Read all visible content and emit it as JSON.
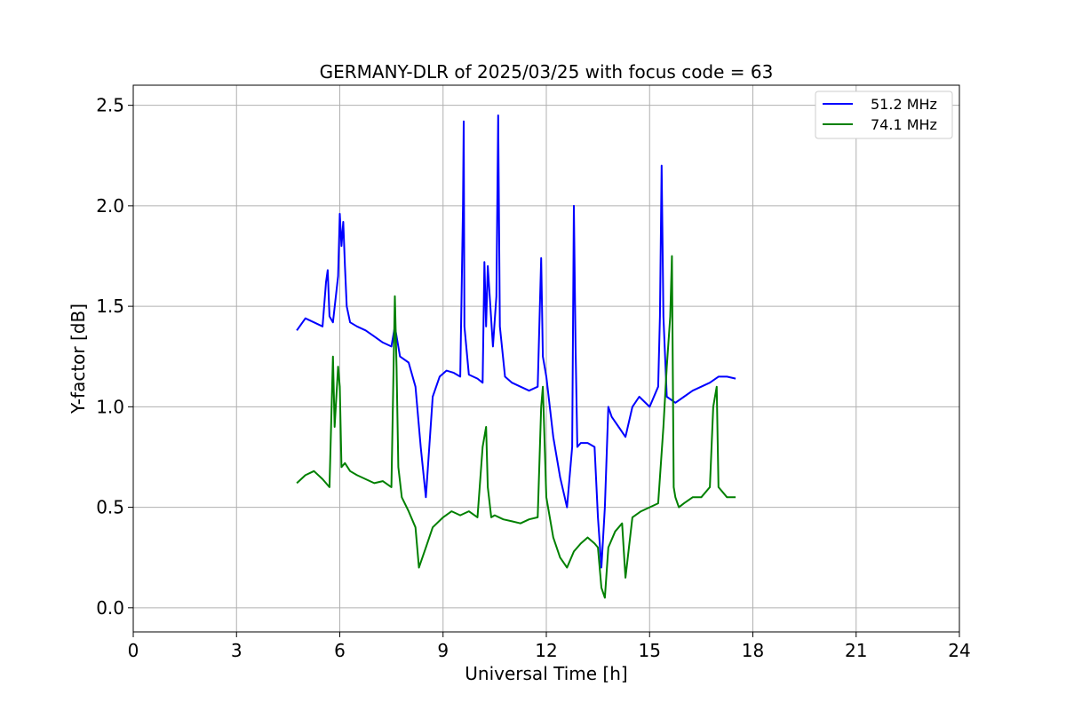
{
  "chart_data": {
    "type": "line",
    "title": "GERMANY-DLR of 2025/03/25 with focus code = 63",
    "xlabel": "Universal Time [h]",
    "ylabel": "Y-factor [dB]",
    "xlim": [
      0,
      24
    ],
    "ylim": [
      -0.12,
      2.6
    ],
    "x_ticks": [
      0,
      3,
      6,
      9,
      12,
      15,
      18,
      21,
      24
    ],
    "y_ticks": [
      0.0,
      0.5,
      1.0,
      1.5,
      2.0,
      2.5
    ],
    "x_tick_labels": [
      "0",
      "3",
      "6",
      "9",
      "12",
      "15",
      "18",
      "21",
      "24"
    ],
    "y_tick_labels": [
      "0.0",
      "0.5",
      "1.0",
      "1.5",
      "2.0",
      "2.5"
    ],
    "grid": true,
    "legend_position": "top-right",
    "series": [
      {
        "name": "51.2 MHz",
        "color": "#0000ff",
        "x": [
          4.75,
          5.0,
          5.25,
          5.5,
          5.6,
          5.65,
          5.7,
          5.8,
          5.95,
          6.0,
          6.05,
          6.1,
          6.15,
          6.2,
          6.3,
          6.5,
          6.75,
          7.0,
          7.25,
          7.5,
          7.6,
          7.75,
          8.0,
          8.2,
          8.35,
          8.5,
          8.7,
          8.9,
          9.1,
          9.3,
          9.5,
          9.58,
          9.6,
          9.62,
          9.75,
          10.0,
          10.15,
          10.2,
          10.25,
          10.3,
          10.45,
          10.55,
          10.6,
          10.65,
          10.8,
          11.0,
          11.25,
          11.5,
          11.75,
          11.85,
          11.9,
          12.0,
          12.2,
          12.4,
          12.6,
          12.75,
          12.8,
          12.85,
          12.9,
          13.0,
          13.2,
          13.4,
          13.5,
          13.6,
          13.7,
          13.8,
          13.9,
          14.1,
          14.3,
          14.5,
          14.7,
          15.0,
          15.25,
          15.3,
          15.35,
          15.4,
          15.5,
          15.75,
          16.0,
          16.25,
          16.5,
          16.75,
          17.0,
          17.25,
          17.5
        ],
        "y": [
          1.38,
          1.44,
          1.42,
          1.4,
          1.62,
          1.68,
          1.45,
          1.42,
          1.65,
          1.96,
          1.8,
          1.92,
          1.7,
          1.5,
          1.42,
          1.4,
          1.38,
          1.35,
          1.32,
          1.3,
          1.4,
          1.25,
          1.22,
          1.1,
          0.8,
          0.55,
          1.05,
          1.15,
          1.18,
          1.17,
          1.15,
          2.0,
          2.42,
          1.4,
          1.16,
          1.14,
          1.12,
          1.72,
          1.4,
          1.7,
          1.3,
          1.55,
          2.45,
          1.4,
          1.15,
          1.12,
          1.1,
          1.08,
          1.1,
          1.74,
          1.25,
          1.15,
          0.85,
          0.65,
          0.5,
          0.8,
          2.0,
          1.3,
          0.8,
          0.82,
          0.82,
          0.8,
          0.45,
          0.2,
          0.5,
          1.0,
          0.95,
          0.9,
          0.85,
          1.0,
          1.05,
          1.0,
          1.1,
          1.45,
          2.2,
          1.45,
          1.05,
          1.02,
          1.05,
          1.08,
          1.1,
          1.12,
          1.15,
          1.15,
          1.14
        ]
      },
      {
        "name": "74.1 MHz",
        "color": "#008000",
        "x": [
          4.75,
          5.0,
          5.25,
          5.5,
          5.7,
          5.8,
          5.85,
          5.95,
          6.0,
          6.05,
          6.15,
          6.3,
          6.5,
          6.75,
          7.0,
          7.25,
          7.5,
          7.6,
          7.65,
          7.7,
          7.8,
          8.0,
          8.2,
          8.3,
          8.5,
          8.7,
          9.0,
          9.25,
          9.5,
          9.75,
          10.0,
          10.15,
          10.25,
          10.3,
          10.4,
          10.5,
          10.75,
          11.0,
          11.25,
          11.5,
          11.75,
          11.85,
          11.9,
          12.0,
          12.2,
          12.4,
          12.6,
          12.8,
          13.0,
          13.2,
          13.4,
          13.5,
          13.6,
          13.7,
          13.8,
          14.0,
          14.2,
          14.3,
          14.5,
          14.75,
          15.0,
          15.25,
          15.4,
          15.5,
          15.6,
          15.65,
          15.7,
          15.75,
          15.85,
          16.0,
          16.25,
          16.5,
          16.75,
          16.85,
          16.95,
          17.0,
          17.25,
          17.5
        ],
        "y": [
          0.62,
          0.66,
          0.68,
          0.64,
          0.6,
          1.25,
          0.9,
          1.2,
          1.1,
          0.7,
          0.72,
          0.68,
          0.66,
          0.64,
          0.62,
          0.63,
          0.6,
          1.55,
          1.2,
          0.7,
          0.55,
          0.48,
          0.4,
          0.2,
          0.3,
          0.4,
          0.45,
          0.48,
          0.46,
          0.48,
          0.45,
          0.8,
          0.9,
          0.6,
          0.45,
          0.46,
          0.44,
          0.43,
          0.42,
          0.44,
          0.45,
          1.0,
          1.1,
          0.55,
          0.35,
          0.25,
          0.2,
          0.28,
          0.32,
          0.35,
          0.32,
          0.3,
          0.1,
          0.05,
          0.3,
          0.38,
          0.42,
          0.15,
          0.45,
          0.48,
          0.5,
          0.52,
          0.9,
          1.2,
          1.45,
          1.75,
          0.6,
          0.55,
          0.5,
          0.52,
          0.55,
          0.55,
          0.6,
          1.0,
          1.1,
          0.6,
          0.55,
          0.55
        ]
      }
    ]
  }
}
